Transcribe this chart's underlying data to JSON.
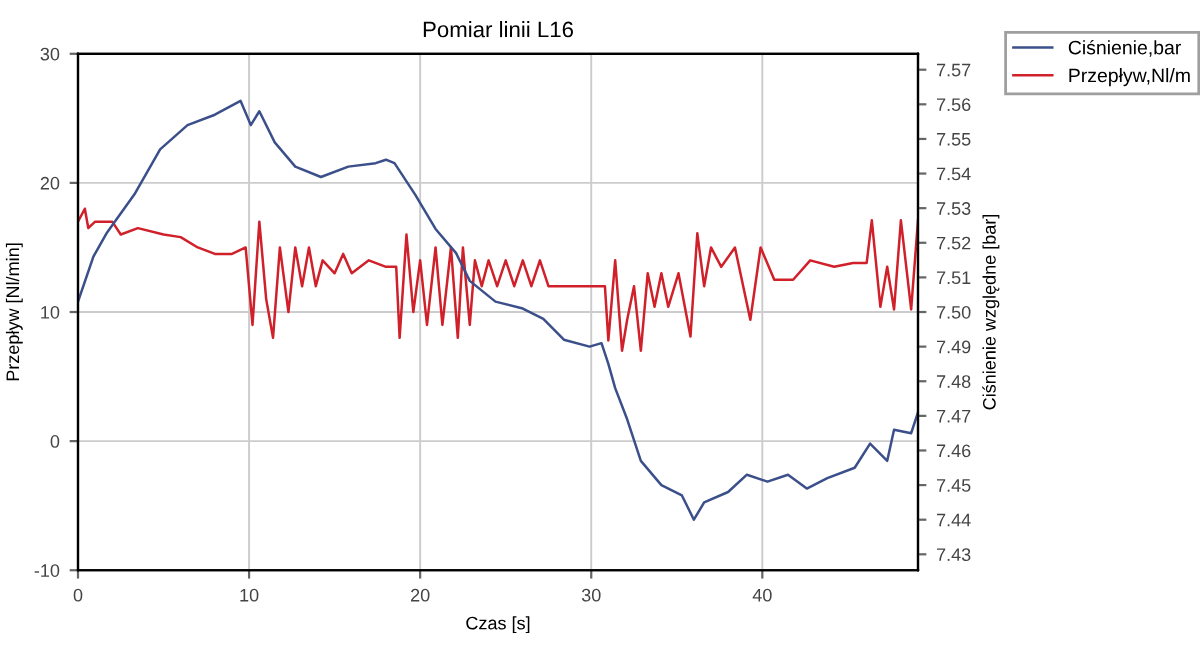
{
  "chart_data": {
    "type": "line",
    "title": "Pomiar linii L16",
    "xlabel": "Czas [s]",
    "ylabel": "Przepływ [Nl/min]",
    "y2label": "Ciśnienie względne [bar]",
    "xlim": [
      0,
      49.1
    ],
    "xticks": [
      0,
      10,
      20,
      30,
      40
    ],
    "ylim": [
      -10,
      30
    ],
    "yticks": [
      -10,
      0,
      10,
      20,
      30
    ],
    "y2lim": [
      7.4254,
      7.5746
    ],
    "y2ticks": [
      7.43,
      7.44,
      7.45,
      7.46,
      7.47,
      7.48,
      7.49,
      {
        "value": 7.5,
        "label": "7.50"
      },
      7.51,
      7.52,
      7.53,
      7.54,
      7.55,
      7.56,
      7.57
    ],
    "grid": true,
    "legend": "top right",
    "line_style": "solid",
    "series": [
      {
        "name": "Ciśnienie,bar",
        "color": "#3b4f8a",
        "axis": "y2",
        "x": [
          0,
          0.9,
          1.7,
          3.3,
          4.8,
          6.4,
          8.0,
          9.5,
          10.1,
          10.6,
          11.5,
          12.7,
          14.2,
          15.8,
          17.4,
          18.0,
          18.5,
          19.7,
          20.9,
          22.1,
          22.9,
          24.4,
          26.0,
          27.2,
          28.4,
          29.9,
          30.6,
          31.0,
          31.4,
          32.1,
          32.9,
          34.1,
          35.3,
          36.0,
          36.6,
          38.0,
          39.1,
          40.3,
          41.5,
          42.6,
          43.8,
          45.4,
          46.3,
          47.3,
          47.7,
          48.7,
          49.1
        ],
        "values": [
          7.503,
          7.516,
          7.523,
          7.534,
          7.547,
          7.554,
          7.557,
          7.561,
          7.554,
          7.558,
          7.549,
          7.542,
          7.539,
          7.542,
          7.543,
          7.544,
          7.543,
          7.534,
          7.524,
          7.517,
          7.509,
          7.503,
          7.501,
          7.498,
          7.492,
          7.49,
          7.491,
          7.485,
          7.478,
          7.469,
          7.457,
          7.45,
          7.447,
          7.44,
          7.445,
          7.448,
          7.453,
          7.451,
          7.453,
          7.449,
          7.452,
          7.455,
          7.462,
          7.457,
          7.466,
          7.465,
          7.471
        ]
      },
      {
        "name": "Przepływ,Nl/m",
        "color": "#d0202a",
        "x": [
          0,
          0.4,
          0.6,
          1,
          2,
          2.5,
          3.5,
          5,
          6,
          7,
          8,
          9,
          9.8,
          10.2,
          10.6,
          11.0,
          11.4,
          11.8,
          12.3,
          12.7,
          13.1,
          13.5,
          13.9,
          14.3,
          15,
          15.5,
          16,
          17,
          18,
          18.6,
          18.8,
          19.2,
          19.6,
          20,
          20.4,
          20.9,
          21.3,
          21.8,
          22.2,
          22.5,
          22.9,
          23.2,
          23.6,
          24,
          24.5,
          25,
          25.5,
          26,
          26.5,
          27,
          27.5,
          28.2,
          30.8,
          31,
          31.4,
          31.8,
          32.1,
          32.5,
          32.9,
          33.3,
          33.7,
          34.1,
          34.5,
          35.1,
          35.8,
          36.2,
          36.6,
          37,
          37.6,
          38.4,
          39.3,
          39.9,
          40.7,
          41.8,
          42.8,
          44.2,
          45.3,
          46.1,
          46.4,
          46.9,
          47.3,
          47.7,
          48.1,
          48.7,
          49.1
        ],
        "values": [
          17,
          18,
          16.5,
          17,
          17,
          16,
          16.5,
          16,
          15.8,
          15,
          14.5,
          14.5,
          15,
          9,
          17,
          11,
          8,
          15,
          10,
          15,
          12,
          15,
          12,
          14,
          13,
          14.5,
          13,
          14,
          13.5,
          13.5,
          8,
          16,
          10,
          14,
          9,
          15,
          9,
          15,
          8,
          15,
          9,
          14,
          12,
          14,
          12,
          14,
          12,
          14,
          12,
          14,
          12,
          12,
          12,
          7.8,
          14,
          7,
          9.4,
          12,
          7,
          13,
          10.4,
          13,
          10.4,
          13,
          8.1,
          16.1,
          12,
          15,
          13.5,
          15,
          9.4,
          15,
          12.5,
          12.5,
          14,
          13.5,
          13.8,
          13.8,
          17.1,
          10.4,
          13.5,
          10.2,
          17.1,
          10.2,
          17.1
        ]
      }
    ]
  }
}
